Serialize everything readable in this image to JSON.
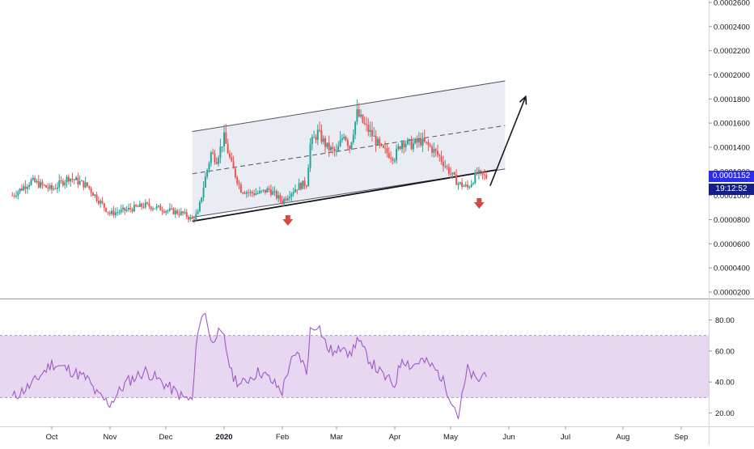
{
  "colors": {
    "up": "#26a69a",
    "down": "#ef5350",
    "channel_fill": "#e9ecf3",
    "rsi_band": "#e7d7f0",
    "rsi_line": "#a05ac8",
    "arrow_down": "#d24a42",
    "badge_price": "#2a2eec",
    "badge_timer": "#131f8a"
  },
  "price_badge": {
    "value": "0.0001152",
    "countdown": "19:12:52"
  },
  "chart_data": [
    {
      "type": "line",
      "title": "",
      "chart_kind": "candlestick",
      "x_axis_labels": [
        "Oct",
        "Nov",
        "Dec",
        "2020",
        "Feb",
        "Mar",
        "Apr",
        "May",
        "Jun",
        "Jul",
        "Aug",
        "Sep"
      ],
      "y_axis_labels": [
        "0.0002600",
        "0.0002400",
        "0.0002200",
        "0.0002000",
        "0.0001800",
        "0.0001600",
        "0.0001400",
        "0.0001200",
        "0.0001000",
        "0.0000800",
        "0.0000600",
        "0.0000400",
        "0.0000200"
      ],
      "ylim": [
        1.5e-05,
        0.000263
      ],
      "x": [
        "2019-09-10",
        "2019-09-20",
        "2019-10-01",
        "2019-10-10",
        "2019-10-20",
        "2019-10-25",
        "2019-11-01",
        "2019-11-10",
        "2019-11-20",
        "2019-12-01",
        "2019-12-10",
        "2019-12-15",
        "2019-12-18",
        "2019-12-22",
        "2019-12-25",
        "2019-12-28",
        "2020-01-01",
        "2020-01-05",
        "2020-01-10",
        "2020-01-15",
        "2020-01-20",
        "2020-01-25",
        "2020-02-01",
        "2020-02-05",
        "2020-02-10",
        "2020-02-14",
        "2020-02-16",
        "2020-02-20",
        "2020-02-25",
        "2020-03-01",
        "2020-03-05",
        "2020-03-08",
        "2020-03-12",
        "2020-03-16",
        "2020-03-20",
        "2020-03-25",
        "2020-04-01",
        "2020-04-05",
        "2020-04-10",
        "2020-04-15",
        "2020-04-20",
        "2020-04-25",
        "2020-05-01",
        "2020-05-05",
        "2020-05-10",
        "2020-05-15",
        "2020-05-20"
      ],
      "series": [
        {
          "values": [
            0.0001,
            0.000112,
            0.000105,
            0.000115,
            0.000108,
            9.8e-05,
            8.5e-05,
            8.8e-05,
            9.2e-05,
            8.8e-05,
            8.5e-05,
            8e-05,
            8.5e-05,
            0.000115,
            0.000135,
            0.00013,
            0.000148,
            0.000125,
            0.000105,
            0.000102,
            0.000102,
            0.000105,
            9.5e-05,
            0.000102,
            0.000108,
            0.00011,
            0.000142,
            0.000152,
            0.00014,
            0.000135,
            0.000152,
            0.00014,
            0.000168,
            0.000158,
            0.00015,
            0.000138,
            0.000132,
            0.000145,
            0.000142,
            0.000145,
            0.00014,
            0.000132,
            0.000118,
            0.00011,
            0.0001065,
            0.000118,
            0.0001152
          ]
        }
      ],
      "annotations": {
        "channel_upper": [
          [
            "2019-12-15",
            0.000153
          ],
          [
            "2020-05-30",
            0.000195
          ]
        ],
        "channel_mid": [
          [
            "2019-12-15",
            0.000118
          ],
          [
            "2020-05-30",
            0.000158
          ]
        ],
        "channel_lower": [
          [
            "2019-12-15",
            8.2e-05
          ],
          [
            "2020-05-30",
            0.000122
          ]
        ],
        "target_arrow": [
          [
            "2020-05-22",
            0.000108
          ],
          [
            "2020-06-10",
            0.000182
          ]
        ],
        "down_arrows_at": [
          "2020-02-01",
          "2020-05-14"
        ]
      }
    },
    {
      "type": "line",
      "title": "",
      "chart_kind": "RSI",
      "y_axis_labels": [
        "80.00",
        "60.00",
        "40.00",
        "20.00"
      ],
      "ylim": [
        12,
        92
      ],
      "band": [
        30,
        70
      ],
      "x": [
        "2019-09-10",
        "2019-09-20",
        "2019-10-01",
        "2019-10-10",
        "2019-10-20",
        "2019-10-25",
        "2019-11-01",
        "2019-11-10",
        "2019-11-20",
        "2019-12-01",
        "2019-12-10",
        "2019-12-15",
        "2019-12-18",
        "2019-12-22",
        "2019-12-25",
        "2019-12-28",
        "2020-01-01",
        "2020-01-05",
        "2020-01-10",
        "2020-01-15",
        "2020-01-20",
        "2020-01-25",
        "2020-02-01",
        "2020-02-05",
        "2020-02-10",
        "2020-02-14",
        "2020-02-16",
        "2020-02-20",
        "2020-02-25",
        "2020-03-01",
        "2020-03-05",
        "2020-03-08",
        "2020-03-12",
        "2020-03-16",
        "2020-03-20",
        "2020-03-25",
        "2020-04-01",
        "2020-04-05",
        "2020-04-10",
        "2020-04-15",
        "2020-04-20",
        "2020-04-25",
        "2020-05-01",
        "2020-05-05",
        "2020-05-10",
        "2020-05-15",
        "2020-05-20"
      ],
      "series": [
        {
          "values": [
            30,
            38,
            52,
            48,
            42,
            32,
            26,
            40,
            47,
            38,
            30,
            28,
            75,
            86,
            65,
            72,
            68,
            45,
            38,
            43,
            47,
            42,
            34,
            52,
            58,
            46,
            73,
            78,
            62,
            58,
            66,
            56,
            68,
            59,
            52,
            45,
            38,
            56,
            50,
            54,
            51,
            45,
            30,
            18,
            48,
            40,
            47
          ]
        }
      ]
    }
  ]
}
